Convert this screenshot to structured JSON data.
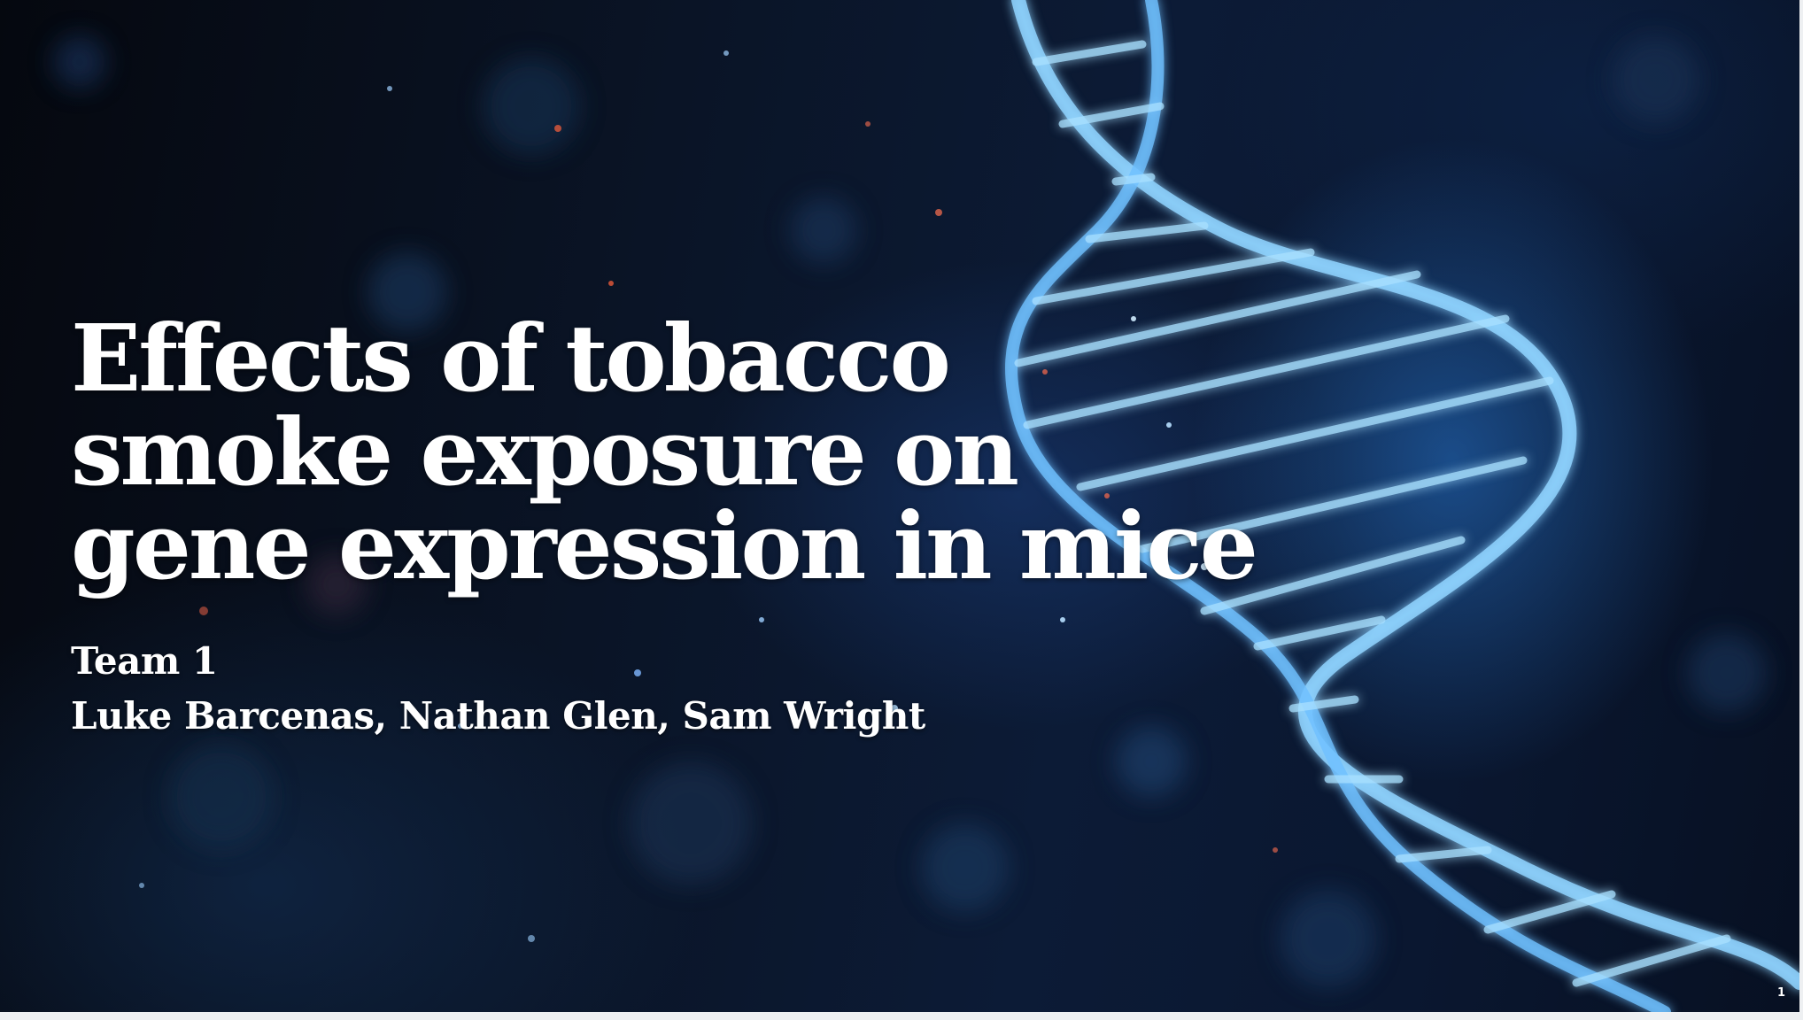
{
  "slide": {
    "title_lines": [
      "Effects of tobacco",
      "smoke exposure on",
      "gene expression in mice"
    ],
    "subtitle_lines": [
      "Team 1",
      "Luke Barcenas, Nathan Glen, Sam Wright"
    ],
    "page_number": "1",
    "background_image": "dna-helix-particles",
    "colors": {
      "background_dark": "#05080f",
      "background_blue": "#0c1b36",
      "helix_glow": "#7ec8ff",
      "text": "#ffffff"
    }
  }
}
